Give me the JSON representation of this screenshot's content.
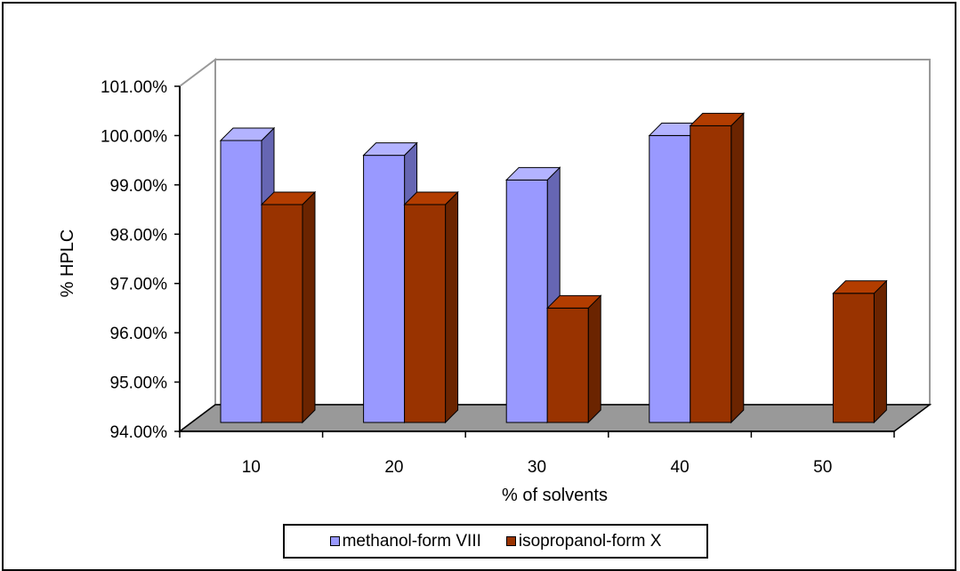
{
  "chart_data": {
    "type": "bar",
    "title": "",
    "xlabel": "% of solvents",
    "ylabel": "% HPLC",
    "categories": [
      "10",
      "20",
      "30",
      "40",
      "50"
    ],
    "ylim": [
      94,
      101
    ],
    "yticks": [
      94,
      95,
      96,
      97,
      98,
      99,
      100,
      101
    ],
    "ytick_labels": [
      "94.00%",
      "95.00%",
      "96.00%",
      "97.00%",
      "98.00%",
      "99.00%",
      "100.00%",
      "101.00%"
    ],
    "grid": false,
    "legend_position": "bottom",
    "series": [
      {
        "name": "methanol-form VIII",
        "values": [
          99.9,
          99.6,
          99.1,
          100.0,
          null
        ],
        "color": "#9999ff",
        "side_color": "#6666b3",
        "top_color": "#b3b3ff"
      },
      {
        "name": "isopropanol-form X",
        "values": [
          98.6,
          98.6,
          96.5,
          100.2,
          96.8
        ],
        "color": "#993300",
        "side_color": "#6b2400",
        "top_color": "#b33d00"
      }
    ],
    "floor_color": "#999999"
  }
}
